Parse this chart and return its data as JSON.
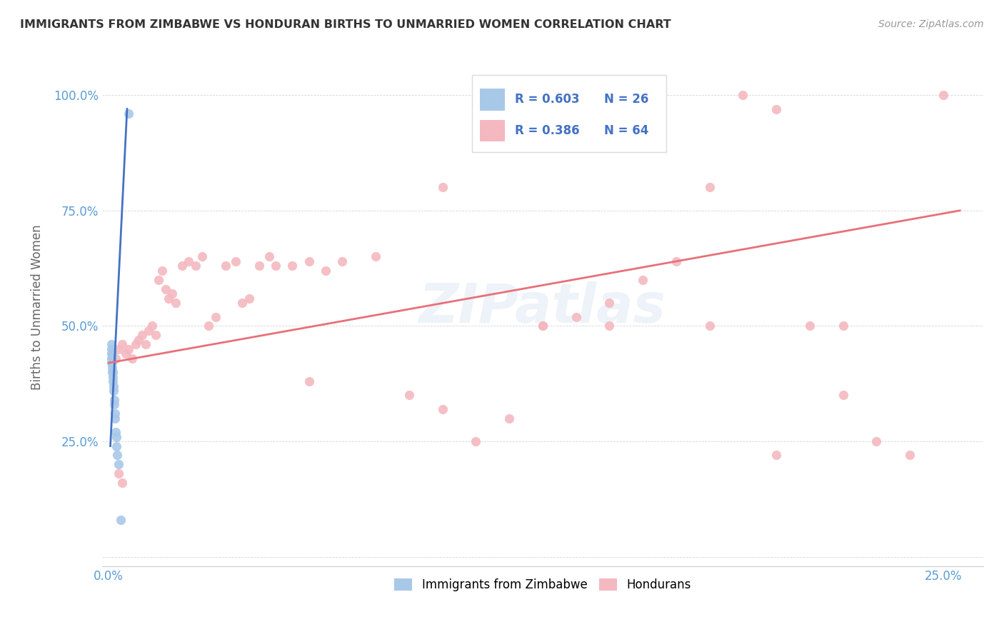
{
  "title": "IMMIGRANTS FROM ZIMBABWE VS HONDURAN BIRTHS TO UNMARRIED WOMEN CORRELATION CHART",
  "source": "Source: ZipAtlas.com",
  "ylabel": "Births to Unmarried Women",
  "color_blue": "#a8c8e8",
  "color_pink": "#f4b8c0",
  "color_blue_line": "#4472c4",
  "color_pink_line": "#e8707a",
  "color_tick": "#5b9bd5",
  "color_title": "#333333",
  "color_source": "#999999",
  "color_r_value": "#4472c4",
  "watermark": "ZIPatlas",
  "xlim": [
    -0.002,
    0.262
  ],
  "ylim": [
    -0.02,
    1.1
  ],
  "x_tick_positions": [
    0.0,
    0.05,
    0.1,
    0.15,
    0.2,
    0.25
  ],
  "x_tick_labels": [
    "0.0%",
    "",
    "",
    "",
    "",
    "25.0%"
  ],
  "y_tick_positions": [
    0.0,
    0.25,
    0.5,
    0.75,
    1.0
  ],
  "y_tick_labels": [
    "",
    "25.0%",
    "50.0%",
    "75.0%",
    "100.0%"
  ],
  "blue_scatter_x": [
    0.0008,
    0.0008,
    0.0008,
    0.0008,
    0.0008,
    0.001,
    0.001,
    0.001,
    0.001,
    0.001,
    0.0012,
    0.0012,
    0.0012,
    0.0014,
    0.0014,
    0.0016,
    0.0016,
    0.0018,
    0.0018,
    0.002,
    0.0022,
    0.0024,
    0.0026,
    0.003,
    0.0035,
    0.006
  ],
  "blue_scatter_y": [
    0.42,
    0.43,
    0.44,
    0.45,
    0.46,
    0.4,
    0.41,
    0.42,
    0.43,
    0.44,
    0.38,
    0.39,
    0.4,
    0.36,
    0.37,
    0.33,
    0.34,
    0.3,
    0.31,
    0.27,
    0.26,
    0.24,
    0.22,
    0.2,
    0.08,
    0.96
  ],
  "pink_scatter_x": [
    0.001,
    0.002,
    0.003,
    0.004,
    0.005,
    0.006,
    0.007,
    0.008,
    0.009,
    0.01,
    0.011,
    0.012,
    0.013,
    0.014,
    0.015,
    0.016,
    0.017,
    0.018,
    0.019,
    0.02,
    0.022,
    0.024,
    0.026,
    0.028,
    0.03,
    0.032,
    0.035,
    0.038,
    0.04,
    0.042,
    0.045,
    0.048,
    0.05,
    0.055,
    0.06,
    0.065,
    0.07,
    0.08,
    0.09,
    0.1,
    0.11,
    0.12,
    0.13,
    0.14,
    0.15,
    0.16,
    0.17,
    0.18,
    0.19,
    0.2,
    0.21,
    0.22,
    0.23,
    0.24,
    0.25,
    0.13,
    0.15,
    0.18,
    0.2,
    0.22,
    0.1,
    0.06,
    0.003,
    0.004
  ],
  "pink_scatter_y": [
    0.44,
    0.43,
    0.45,
    0.46,
    0.44,
    0.45,
    0.43,
    0.46,
    0.47,
    0.48,
    0.46,
    0.49,
    0.5,
    0.48,
    0.6,
    0.62,
    0.58,
    0.56,
    0.57,
    0.55,
    0.63,
    0.64,
    0.63,
    0.65,
    0.5,
    0.52,
    0.63,
    0.64,
    0.55,
    0.56,
    0.63,
    0.65,
    0.63,
    0.63,
    0.64,
    0.62,
    0.64,
    0.65,
    0.35,
    0.8,
    0.25,
    0.3,
    0.5,
    0.52,
    0.55,
    0.6,
    0.64,
    0.8,
    1.0,
    0.97,
    0.5,
    0.35,
    0.25,
    0.22,
    1.0,
    0.5,
    0.5,
    0.5,
    0.22,
    0.5,
    0.32,
    0.38,
    0.18,
    0.16
  ],
  "blue_line_x": [
    0.0005,
    0.0055
  ],
  "blue_line_y": [
    0.24,
    0.97
  ],
  "pink_line_x": [
    0.0,
    0.255
  ],
  "pink_line_y": [
    0.42,
    0.75
  ],
  "legend_items": [
    {
      "label": "R = 0.603",
      "n": "N = 26",
      "color": "#a8c8e8"
    },
    {
      "label": "R = 0.386",
      "n": "N = 64",
      "color": "#f4b8c0"
    }
  ],
  "bottom_legend": [
    {
      "label": "Immigrants from Zimbabwe",
      "color": "#a8c8e8"
    },
    {
      "label": "Hondurans",
      "color": "#f4b8c0"
    }
  ]
}
